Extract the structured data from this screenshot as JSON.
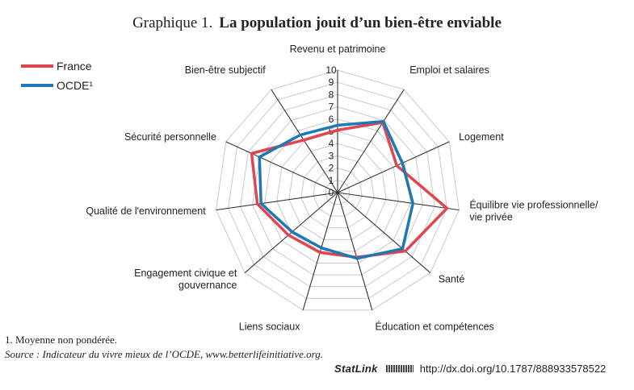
{
  "header": {
    "prefix": "Graphique 1.",
    "title": "La population jouit d’un bien-être enviable"
  },
  "colors": {
    "france": "#e0464f",
    "ocde": "#1f77b4",
    "grid": "#c8c8c8",
    "axis": "#333333"
  },
  "legend": [
    {
      "name": "France",
      "color": "#e0464f"
    },
    {
      "name": "OCDE¹",
      "color": "#1f77b4"
    }
  ],
  "chart_data": {
    "type": "radar",
    "title": "",
    "scale": {
      "min": 0,
      "max": 10,
      "ticks": [
        "0",
        "1",
        "2",
        "3",
        "4",
        "5",
        "6",
        "7",
        "8",
        "9",
        "10"
      ]
    },
    "categories": [
      [
        "Revenu et patrimoine"
      ],
      [
        "Emploi et salaires"
      ],
      [
        "Logement"
      ],
      [
        "Équilibre vie professionnelle/",
        "vie privée"
      ],
      [
        "Santé"
      ],
      [
        "Éducation et compétences"
      ],
      [
        "Liens sociaux"
      ],
      [
        "Engagement civique et",
        "gouvernance"
      ],
      [
        "Qualité de l'environnement"
      ],
      [
        "Sécurité personnelle"
      ],
      [
        "Bien-être subjectif"
      ]
    ],
    "series": [
      {
        "name": "France",
        "values": [
          5.1,
          6.8,
          5.3,
          9.0,
          7.3,
          5.5,
          5.1,
          5.3,
          6.6,
          7.7,
          5.1
        ]
      },
      {
        "name": "OCDE¹",
        "values": [
          5.5,
          6.9,
          5.8,
          6.2,
          7.0,
          5.6,
          4.7,
          4.9,
          6.3,
          7.0,
          5.6
        ]
      }
    ],
    "grid": true,
    "legend_position": "top-left"
  },
  "footer": {
    "note": "1.  Moyenne non pondérée.",
    "source": "Source :  Indicateur du vivre mieux de l’OCDE, www.betterlifeinitiative.org.",
    "statlink_brand": "StatLink",
    "statlink_url": "http://dx.doi.org/10.1787/888933578522"
  }
}
